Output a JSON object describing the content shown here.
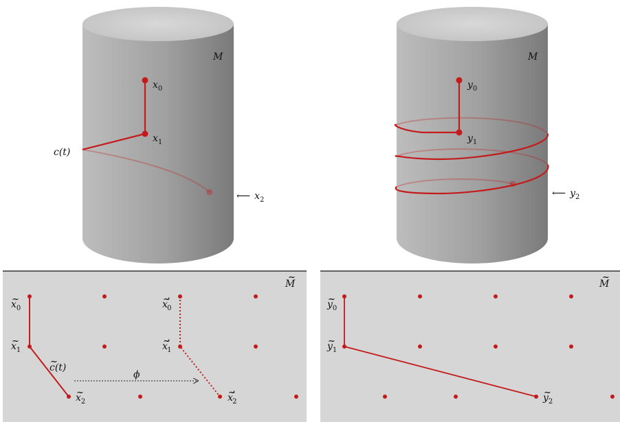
{
  "top_left": {
    "manifold": "M",
    "point_x0": "x",
    "point_x0_sub": "0",
    "point_x1": "x",
    "point_x1_sub": "1",
    "curve": "c(t)",
    "arrow": "⟵",
    "point_x2": "x",
    "point_x2_sub": "2"
  },
  "top_right": {
    "manifold": "M",
    "point_y0": "y",
    "point_y0_sub": "0",
    "point_y1": "y",
    "point_y1_sub": "1",
    "arrow": "⟵",
    "point_y2": "y",
    "point_y2_sub": "2"
  },
  "bottom_left": {
    "manifold": "M",
    "tilde": "~",
    "x0": "x",
    "x0_sub": "0",
    "x1": "x",
    "x1_sub": "1",
    "x2": "x",
    "x2_sub": "2",
    "curve": "c(t)",
    "map": "ϕ",
    "x0p": "x",
    "x0p_sub": "0",
    "prime": "′",
    "x1p": "x",
    "x1p_sub": "1",
    "x2p": "x",
    "x2p_sub": "2"
  },
  "bottom_right": {
    "manifold": "M",
    "y0": "y",
    "y0_sub": "0",
    "y1": "y",
    "y1_sub": "1",
    "y2": "y",
    "y2_sub": "2"
  },
  "colors": {
    "curve_red": "#c41a1a",
    "cylinder_gray": "#9a9a9a",
    "panel_gray": "#d6d6d6"
  }
}
